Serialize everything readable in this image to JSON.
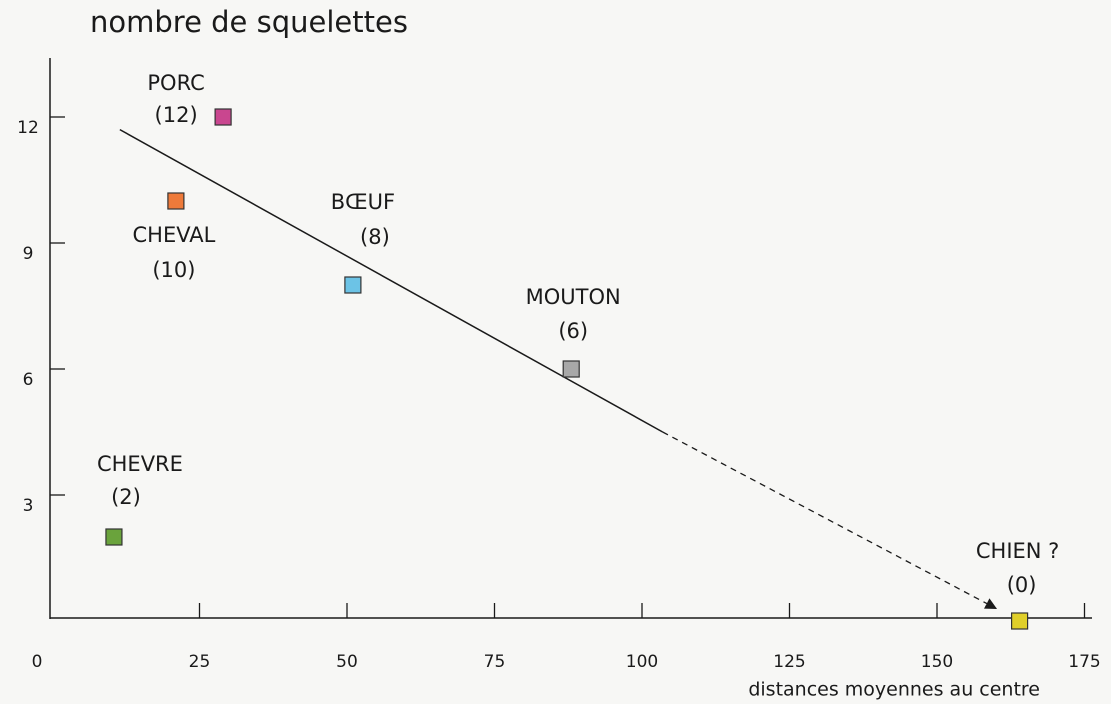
{
  "chart_data": {
    "type": "scatter",
    "y_label": "nombre de squelettes",
    "x_label": "distances moyennes au centre",
    "categories": [
      "PORC",
      "CHEVAL",
      "BŒUF",
      "MOUTON",
      "CHEVRE",
      "CHIEN ?"
    ],
    "x": [
      29,
      21,
      51,
      88,
      10.5,
      164
    ],
    "values": [
      12,
      10,
      8,
      6,
      2,
      0
    ],
    "value_labels": [
      "(12)",
      "(10)",
      "(8)",
      "(6)",
      "(2)",
      "(0)"
    ],
    "colors": [
      "#c9468f",
      "#ee7a3a",
      "#6cc3e6",
      "#a8a8a8",
      "#6aa33c",
      "#e0cf2a"
    ],
    "trend": {
      "x": [
        11.5,
        103.5,
        160
      ],
      "y": [
        11.7,
        4.5,
        0.3
      ]
    },
    "xlim": [
      0,
      177
    ],
    "ylim": [
      0,
      13.4
    ],
    "xticks": [
      0,
      25,
      50,
      75,
      100,
      125,
      150,
      175
    ],
    "yticks": [
      3,
      6,
      9,
      12
    ]
  }
}
